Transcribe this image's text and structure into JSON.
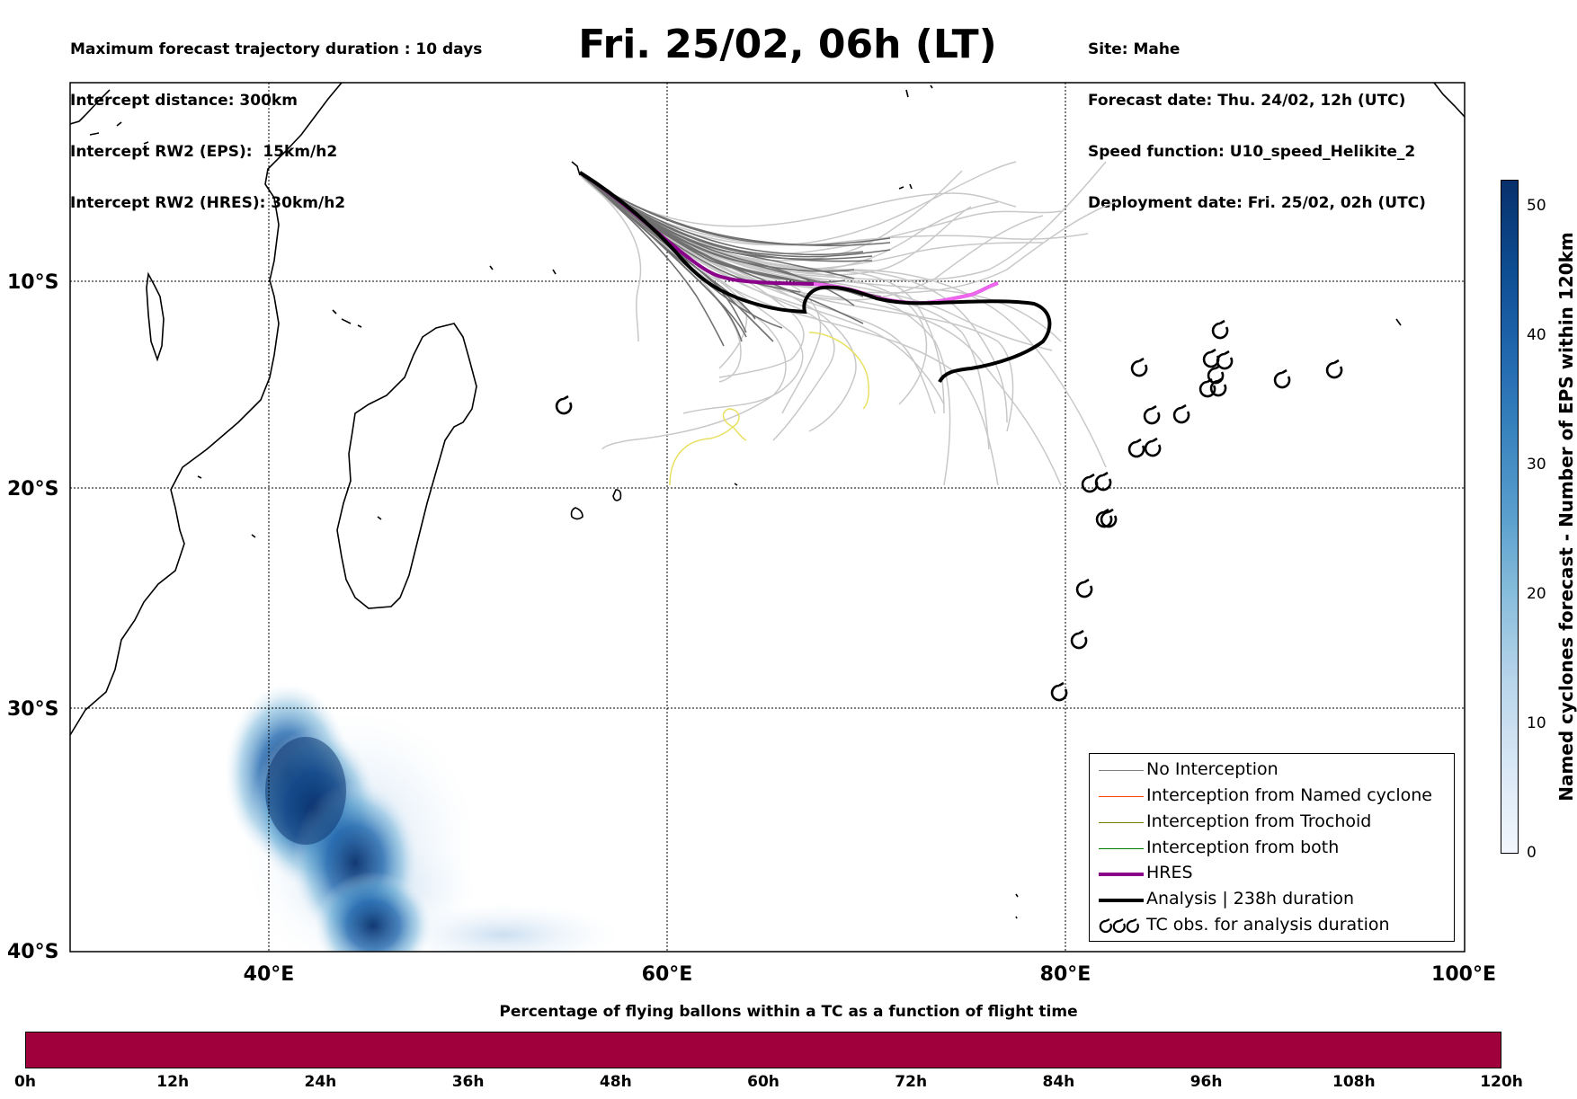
{
  "header": {
    "title": "Fri. 25/02, 06h (LT)",
    "left_lines": [
      "Maximum forecast trajectory duration : 10 days",
      "Intercept distance: 300km",
      "Intercept RW2 (EPS):  15km/h2",
      "Intercept RW2 (HRES): 30km/h2"
    ],
    "right_lines": [
      "Site: Mahe",
      "Forecast date: Thu. 24/02, 12h (UTC)",
      "Speed function: U10_speed_Helikite_2",
      "Deployment date: Fri. 25/02, 02h (UTC)"
    ]
  },
  "map": {
    "lat_labels": [
      "10°S",
      "20°S",
      "30°S",
      "40°S"
    ],
    "lon_labels": [
      "40°E",
      "60°E",
      "80°E",
      "100°E"
    ],
    "extent": {
      "lon_min": 30,
      "lon_max": 100,
      "lat_top": -0.4,
      "lat_bottom": -40
    }
  },
  "legend": {
    "items": [
      {
        "label": "No Interception",
        "color": "#808080",
        "style": "thin"
      },
      {
        "label": "Interception from Named cyclone",
        "color": "#ff4500",
        "style": "thin"
      },
      {
        "label": "Interception from Trochoid",
        "color": "#808000",
        "style": "thin"
      },
      {
        "label": "Interception from both",
        "color": "#008000",
        "style": "thin"
      },
      {
        "label": "HRES",
        "color": "#8b008b",
        "style": "thick"
      },
      {
        "label": "Analysis | 238h duration",
        "color": "#000000",
        "style": "thick"
      },
      {
        "label": "TC obs. for analysis duration",
        "color": "#000000",
        "style": "symbol"
      }
    ]
  },
  "colorbar": {
    "title": "Named cyclones forecast - Number of EPS within 120km",
    "ticks": [
      "0",
      "10",
      "20",
      "30",
      "40",
      "50"
    ],
    "range": [
      0,
      52
    ]
  },
  "timebar": {
    "title": "Percentage of flying ballons within a TC as a function of flight time",
    "ticks": [
      "0h",
      "12h",
      "24h",
      "36h",
      "48h",
      "60h",
      "72h",
      "84h",
      "96h",
      "108h",
      "120h"
    ],
    "fill_color": "#a0003c"
  },
  "tc_obs_symbol": "tropical-cyclone-icon"
}
